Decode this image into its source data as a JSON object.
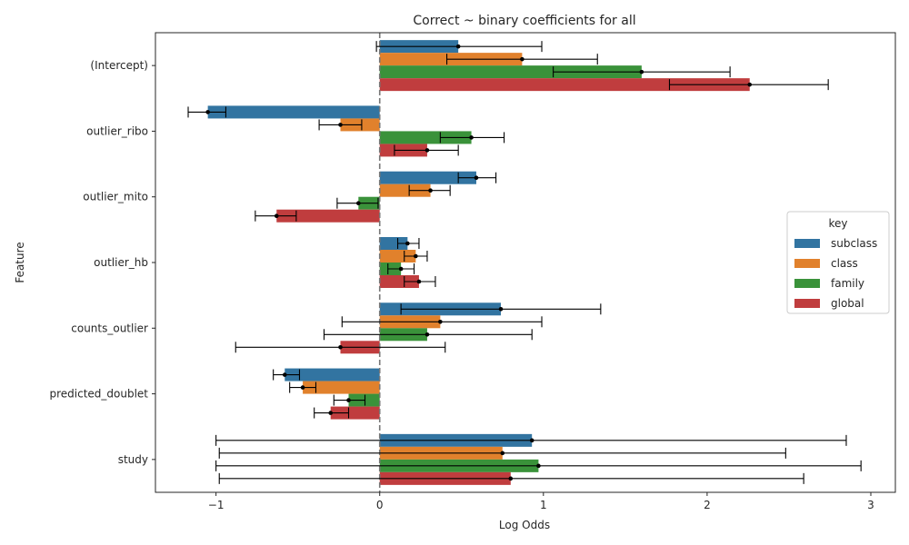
{
  "chart_data": {
    "type": "bar",
    "orientation": "horizontal",
    "title": "Correct ~ binary coefficients for all",
    "xlabel": "Log Odds",
    "ylabel": "Feature",
    "xlim": [
      -1.37,
      3.15
    ],
    "x_ticks": [
      -1,
      0,
      1,
      2,
      3
    ],
    "grid": false,
    "reference_line_x": 0,
    "categories": [
      "(Intercept)",
      "outlier_ribo",
      "outlier_mito",
      "outlier_hb",
      "counts_outlier",
      "predicted_doublet",
      "study"
    ],
    "legend": {
      "title": "key",
      "placement": "center-right"
    },
    "series": [
      {
        "name": "subclass",
        "color": "#3274a1",
        "values": [
          0.48,
          -1.05,
          0.59,
          0.17,
          0.74,
          -0.58,
          0.93
        ],
        "ci_low": [
          -0.02,
          -1.17,
          0.48,
          0.11,
          0.13,
          -0.65,
          -1.0
        ],
        "ci_high": [
          0.99,
          -0.94,
          0.71,
          0.24,
          1.35,
          -0.49,
          2.85
        ]
      },
      {
        "name": "class",
        "color": "#e1812c",
        "values": [
          0.87,
          -0.24,
          0.31,
          0.22,
          0.37,
          -0.47,
          0.75
        ],
        "ci_low": [
          0.41,
          -0.37,
          0.18,
          0.15,
          -0.23,
          -0.55,
          -0.98
        ],
        "ci_high": [
          1.33,
          -0.11,
          0.43,
          0.29,
          0.99,
          -0.39,
          2.48
        ]
      },
      {
        "name": "family",
        "color": "#3a923a",
        "values": [
          1.6,
          0.56,
          -0.13,
          0.13,
          0.29,
          -0.19,
          0.97
        ],
        "ci_low": [
          1.06,
          0.37,
          -0.26,
          0.05,
          -0.34,
          -0.28,
          -1.0
        ],
        "ci_high": [
          2.14,
          0.76,
          -0.01,
          0.21,
          0.93,
          -0.09,
          2.94
        ]
      },
      {
        "name": "global",
        "color": "#c03d3e",
        "values": [
          2.26,
          0.29,
          -0.63,
          0.24,
          -0.24,
          -0.3,
          0.8
        ],
        "ci_low": [
          1.77,
          0.09,
          -0.76,
          0.15,
          -0.88,
          -0.4,
          -0.98
        ],
        "ci_high": [
          2.74,
          0.48,
          -0.51,
          0.34,
          0.4,
          -0.19,
          2.59
        ]
      }
    ]
  }
}
